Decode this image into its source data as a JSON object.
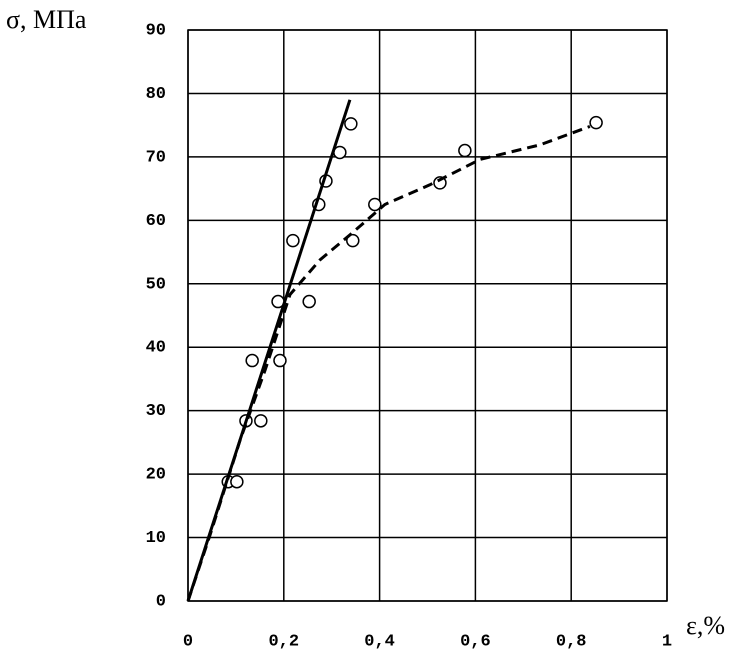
{
  "chart_data": {
    "type": "scatter",
    "y_label": "σ, МПа",
    "x_label": "ε,%",
    "xlim": [
      0,
      1
    ],
    "ylim": [
      0,
      90
    ],
    "xticks": [
      0,
      {
        "value": 0.2,
        "label": "0,2"
      },
      {
        "value": 0.4,
        "label": "0,4"
      },
      {
        "value": 0.6,
        "label": "0,6"
      },
      {
        "value": 0.8,
        "label": "0,8"
      },
      1
    ],
    "yticks": [
      0,
      10,
      20,
      30,
      40,
      50,
      60,
      70,
      80,
      90
    ],
    "grid": true,
    "series": [
      {
        "style": "markers",
        "color": "#000000",
        "x": [
          0.084,
          0.121,
          0.134,
          0.188,
          0.219,
          0.273,
          0.288,
          0.317,
          0.34
        ],
        "values": [
          18.8,
          28.4,
          37.9,
          47.2,
          56.8,
          62.5,
          66.2,
          70.7,
          75.2
        ]
      },
      {
        "style": "markers",
        "color": "#000000",
        "x": [
          0.102,
          0.152,
          0.192,
          0.253,
          0.344,
          0.39,
          0.526,
          0.578,
          0.852
        ],
        "values": [
          18.8,
          28.4,
          37.9,
          47.2,
          56.8,
          62.5,
          65.9,
          71.0,
          75.4
        ]
      },
      {
        "style": "solid",
        "color": "#000000",
        "x": [
          0,
          0.338
        ],
        "values": [
          0,
          79.0
        ]
      },
      {
        "style": "dashed",
        "color": "#000000",
        "x": [
          0,
          0.046,
          0.109,
          0.161,
          0.213,
          0.276,
          0.338,
          0.411,
          0.505,
          0.61,
          0.735,
          0.839
        ],
        "values": [
          0,
          10.4,
          25.4,
          36.4,
          48.3,
          53.8,
          57.7,
          62.5,
          65.6,
          69.6,
          71.9,
          74.8
        ]
      }
    ]
  }
}
